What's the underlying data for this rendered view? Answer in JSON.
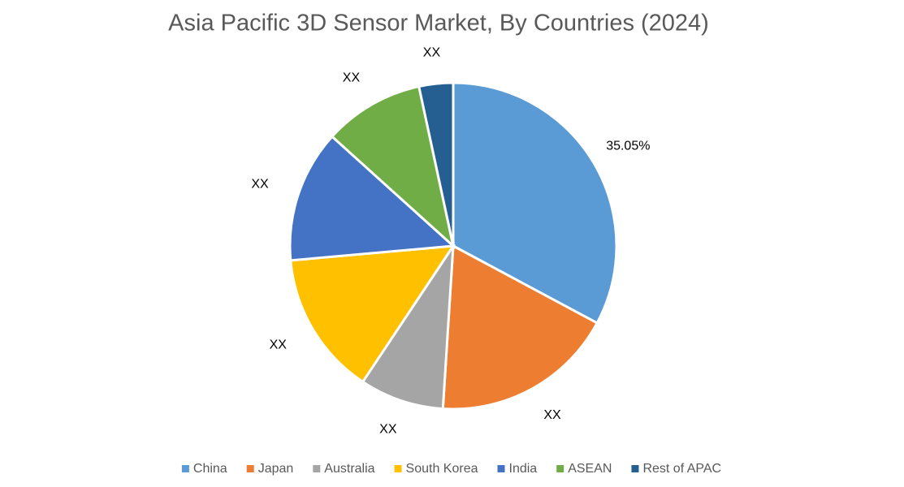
{
  "chart_data": {
    "type": "pie",
    "title": "Asia Pacific 3D Sensor Market, By Countries (2024)",
    "categories": [
      "China",
      "Japan",
      "Australia",
      "South Korea",
      "India",
      "ASEAN",
      "Rest of APAC"
    ],
    "values": [
      35.05,
      19.4,
      8.9,
      15.2,
      14.0,
      10.6,
      3.6
    ],
    "value_labels": [
      "35.05%",
      "XX",
      "XX",
      "XX",
      "XX",
      "XX",
      "XX"
    ],
    "colors": [
      "#5b9bd5",
      "#ed7d31",
      "#a5a5a5",
      "#ffc000",
      "#4472c4",
      "#70ad47",
      "#255e91"
    ],
    "legend": "bottom"
  }
}
